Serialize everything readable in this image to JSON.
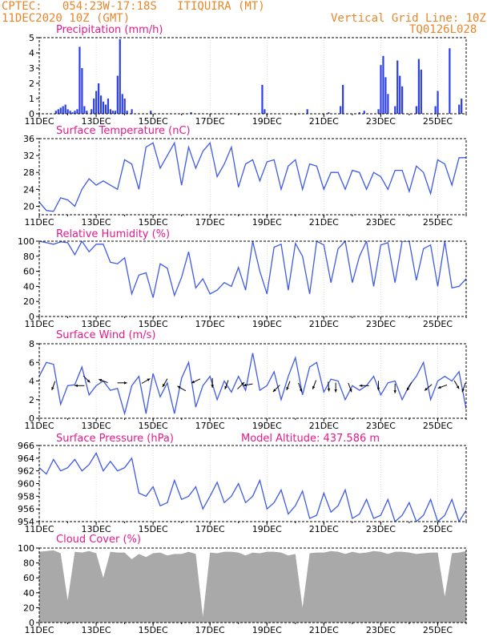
{
  "header": {
    "station": "CPTEC:   054:23W-17:18S   ITIQUIRA (MT)",
    "run": "11DEC2020 10Z (GMT)",
    "grid_note": "Vertical Grid Line: 10Z",
    "model": "TQ0126L028"
  },
  "colors": {
    "line": "#3f5be6",
    "bar": "#2d3fe6",
    "cloud": "#a9a9a9",
    "title": "#e6198c",
    "header": "#e8862a",
    "arrow": "#000000"
  },
  "x_axis": {
    "ticks": [
      "11DEC",
      "13DEC",
      "15DEC",
      "17DEC",
      "19DEC",
      "21DEC",
      "23DEC",
      "25DEC"
    ],
    "range_hours": [
      0,
      360
    ]
  },
  "panels": {
    "precip": {
      "title": "Precipitation (mm/h)"
    },
    "temp": {
      "title": "Surface Temperature (nC)"
    },
    "rh": {
      "title": "Relative Humidity (%)"
    },
    "wind": {
      "title": "Surface Wind (m/s)"
    },
    "press": {
      "title": "Surface Pressure (hPa)",
      "altitude": "Model Altitude: 437.586 m"
    },
    "cloud": {
      "title": "Cloud Cover (%)"
    }
  },
  "chart_data": [
    {
      "id": "precip",
      "type": "bar",
      "title": "Precipitation (mm/h)",
      "ylim": [
        0,
        5
      ],
      "yticks": [
        0,
        1,
        2,
        3,
        4,
        5
      ],
      "x_hours": [
        14,
        16,
        18,
        20,
        22,
        24,
        26,
        28,
        30,
        32,
        34,
        36,
        38,
        40,
        44,
        46,
        48,
        50,
        52,
        54,
        56,
        58,
        60,
        62,
        64,
        66,
        68,
        70,
        72,
        74,
        78,
        94,
        128,
        188,
        190,
        226,
        244,
        254,
        256,
        270,
        274,
        286,
        288,
        290,
        292,
        294,
        300,
        302,
        304,
        306,
        318,
        320,
        322,
        334,
        336,
        346,
        354,
        356
      ],
      "values": [
        0.2,
        0.3,
        0.4,
        0.5,
        0.6,
        0.3,
        0.2,
        0.1,
        0.2,
        0.3,
        4.4,
        3.0,
        0.5,
        0.2,
        0.3,
        1.0,
        1.5,
        2.0,
        1.2,
        0.8,
        0.6,
        1.0,
        0.3,
        0.2,
        0.2,
        2.5,
        4.9,
        1.3,
        1.0,
        0.2,
        0.3,
        0.2,
        0.1,
        1.9,
        0.3,
        0.3,
        0.1,
        0.5,
        1.9,
        0.1,
        0.2,
        0.3,
        3.2,
        3.8,
        2.4,
        1.3,
        0.5,
        3.5,
        2.5,
        1.8,
        0.5,
        3.6,
        2.9,
        0.5,
        1.5,
        4.3,
        0.6,
        1.0
      ]
    },
    {
      "id": "temp",
      "type": "line",
      "title": "Surface Temperature (nC)",
      "ylim": [
        18,
        36
      ],
      "yticks": [
        20,
        24,
        28,
        32,
        36
      ],
      "x_hours": [
        0,
        6,
        12,
        18,
        24,
        30,
        36,
        42,
        48,
        54,
        60,
        66,
        72,
        78,
        84,
        90,
        96,
        102,
        108,
        114,
        120,
        126,
        132,
        138,
        144,
        150,
        156,
        162,
        168,
        174,
        180,
        186,
        192,
        198,
        204,
        210,
        216,
        222,
        228,
        234,
        240,
        246,
        252,
        258,
        264,
        270,
        276,
        282,
        288,
        294,
        300,
        306,
        312,
        318,
        324,
        330,
        336,
        342,
        348,
        354,
        360
      ],
      "values": [
        21,
        19,
        18.8,
        22,
        21.5,
        20,
        24,
        26.5,
        25,
        26,
        25,
        24,
        31,
        30,
        24,
        34,
        35,
        29,
        32,
        35,
        25,
        34,
        29,
        33,
        35,
        27,
        30,
        34,
        24.5,
        30,
        31,
        26,
        30.5,
        31,
        24,
        29.5,
        31,
        24,
        30,
        29.5,
        24,
        28,
        28,
        24,
        28.5,
        28,
        24,
        28,
        27,
        24,
        28.5,
        28.5,
        23.5,
        29.5,
        28,
        23,
        31,
        30,
        25,
        31.5,
        31.5
      ]
    },
    {
      "id": "rh",
      "type": "line",
      "title": "Relative Humidity (%)",
      "ylim": [
        0,
        100
      ],
      "yticks": [
        0,
        20,
        40,
        60,
        80,
        100
      ],
      "x_hours": [
        0,
        6,
        12,
        18,
        24,
        30,
        36,
        42,
        48,
        54,
        60,
        66,
        72,
        78,
        84,
        90,
        96,
        102,
        108,
        114,
        120,
        126,
        132,
        138,
        144,
        150,
        156,
        162,
        168,
        174,
        180,
        186,
        192,
        198,
        204,
        210,
        216,
        222,
        228,
        234,
        240,
        246,
        252,
        258,
        264,
        270,
        276,
        282,
        288,
        294,
        300,
        306,
        312,
        318,
        324,
        330,
        336,
        342,
        348,
        354,
        360
      ],
      "values": [
        100,
        98,
        96,
        99,
        98,
        82,
        100,
        86,
        96,
        96,
        72,
        70,
        78,
        30,
        55,
        58,
        25,
        70,
        64,
        28,
        52,
        86,
        38,
        50,
        30,
        35,
        45,
        40,
        65,
        35,
        100,
        60,
        30,
        92,
        96,
        35,
        97,
        80,
        30,
        100,
        95,
        45,
        90,
        100,
        45,
        80,
        100,
        40,
        95,
        98,
        45,
        100,
        100,
        48,
        90,
        95,
        40,
        100,
        38,
        40,
        50
      ]
    },
    {
      "id": "wind",
      "type": "line",
      "title": "Surface Wind (m/s)",
      "ylim": [
        0,
        8
      ],
      "yticks": [
        0,
        2,
        4,
        6,
        8
      ],
      "x_hours": [
        0,
        6,
        12,
        18,
        24,
        30,
        36,
        42,
        48,
        54,
        60,
        66,
        72,
        78,
        84,
        90,
        96,
        102,
        108,
        114,
        120,
        126,
        132,
        138,
        144,
        150,
        156,
        162,
        168,
        174,
        180,
        186,
        192,
        198,
        204,
        210,
        216,
        222,
        228,
        234,
        240,
        246,
        252,
        258,
        264,
        270,
        276,
        282,
        288,
        294,
        300,
        306,
        312,
        318,
        324,
        330,
        336,
        342,
        348,
        354,
        360
      ],
      "values": [
        4.5,
        6,
        5.8,
        1.5,
        3.5,
        3.6,
        5.5,
        2.5,
        3.5,
        4,
        3,
        3.2,
        0.5,
        3.5,
        4.5,
        0.5,
        4.8,
        2.3,
        3.8,
        0.5,
        4.3,
        6,
        1.2,
        3.5,
        4.5,
        2,
        4,
        2.8,
        4.5,
        3,
        7,
        3,
        3.5,
        5,
        2,
        4.5,
        6.5,
        2.5,
        5.5,
        6,
        2.8,
        4.2,
        4,
        2,
        3.5,
        3,
        3.5,
        4.5,
        2.5,
        3.8,
        4,
        2,
        3.5,
        4.5,
        6,
        2,
        4,
        4.5,
        4,
        5,
        1
      ]
    },
    {
      "id": "press",
      "type": "line",
      "title": "Surface Pressure (hPa)",
      "ylim": [
        954,
        966
      ],
      "yticks": [
        954,
        956,
        958,
        960,
        962,
        964,
        966
      ],
      "x_hours": [
        0,
        6,
        12,
        18,
        24,
        30,
        36,
        42,
        48,
        54,
        60,
        66,
        72,
        78,
        84,
        90,
        96,
        102,
        108,
        114,
        120,
        126,
        132,
        138,
        144,
        150,
        156,
        162,
        168,
        174,
        180,
        186,
        192,
        198,
        204,
        210,
        216,
        222,
        228,
        234,
        240,
        246,
        252,
        258,
        264,
        270,
        276,
        282,
        288,
        294,
        300,
        306,
        312,
        318,
        324,
        330,
        336,
        342,
        348,
        354,
        360
      ],
      "values": [
        962.5,
        961.5,
        963.8,
        962,
        962.5,
        963.8,
        962,
        963,
        964.8,
        962,
        963.5,
        962,
        962.5,
        964,
        958.5,
        958,
        959.5,
        956.5,
        957,
        960.5,
        957.5,
        958,
        959.5,
        956,
        958,
        960.2,
        957,
        958,
        960,
        957,
        958,
        960.5,
        956,
        957,
        959,
        955.2,
        956.5,
        958.8,
        954.5,
        955,
        958.5,
        955.5,
        956.5,
        959,
        954.5,
        955.2,
        957.5,
        954.5,
        955,
        957.5,
        954,
        955,
        957,
        954,
        955,
        957.5,
        954,
        955,
        957.5,
        954,
        955.8
      ]
    },
    {
      "id": "cloud",
      "type": "area",
      "title": "Cloud Cover (%)",
      "ylim": [
        0,
        100
      ],
      "yticks": [
        0,
        20,
        40,
        60,
        80,
        100
      ],
      "x_hours": [
        0,
        6,
        12,
        18,
        24,
        30,
        36,
        42,
        48,
        54,
        60,
        66,
        72,
        78,
        84,
        90,
        96,
        102,
        108,
        114,
        120,
        126,
        132,
        138,
        144,
        150,
        156,
        162,
        168,
        174,
        180,
        186,
        192,
        198,
        204,
        210,
        216,
        222,
        228,
        234,
        240,
        246,
        252,
        258,
        264,
        270,
        276,
        282,
        288,
        294,
        300,
        306,
        312,
        318,
        324,
        330,
        336,
        342,
        348,
        354,
        360
      ],
      "values": [
        95,
        96,
        97,
        93,
        30,
        95,
        94,
        96,
        93,
        60,
        95,
        94,
        94,
        85,
        92,
        88,
        93,
        94,
        90,
        92,
        92,
        95,
        92,
        8,
        94,
        93,
        95,
        95,
        94,
        90,
        94,
        93,
        95,
        95,
        94,
        90,
        92,
        20,
        93,
        94,
        94,
        96,
        95,
        92,
        95,
        93,
        94,
        96,
        95,
        92,
        95,
        95,
        94,
        92,
        93,
        94,
        94,
        35,
        93,
        94,
        96
      ]
    },
    {
      "id": "wind_arrows",
      "type": "scatter",
      "title": "",
      "x_hours": [
        12,
        34,
        40,
        54,
        70,
        90,
        106,
        120,
        132,
        146,
        158,
        170,
        176,
        200,
        210,
        220,
        232,
        244,
        250,
        262,
        274,
        286,
        300,
        312,
        328,
        340,
        352,
        358
      ],
      "values": [
        3.5,
        3.5,
        4.2,
        4,
        3.8,
        4,
        3.8,
        3.2,
        4,
        3.8,
        3.6,
        3.5,
        3.6,
        3.2,
        3.5,
        3.3,
        3.6,
        3.4,
        3.3,
        3.3,
        3.5,
        3.5,
        3.2,
        3.4,
        3.3,
        3.4,
        3.6,
        3.3
      ],
      "direction_deg": [
        200,
        270,
        135,
        290,
        90,
        60,
        210,
        300,
        245,
        180,
        200,
        45,
        260,
        225,
        200,
        160,
        200,
        175,
        180,
        160,
        270,
        180,
        180,
        210,
        230,
        250,
        150,
        200
      ]
    }
  ]
}
